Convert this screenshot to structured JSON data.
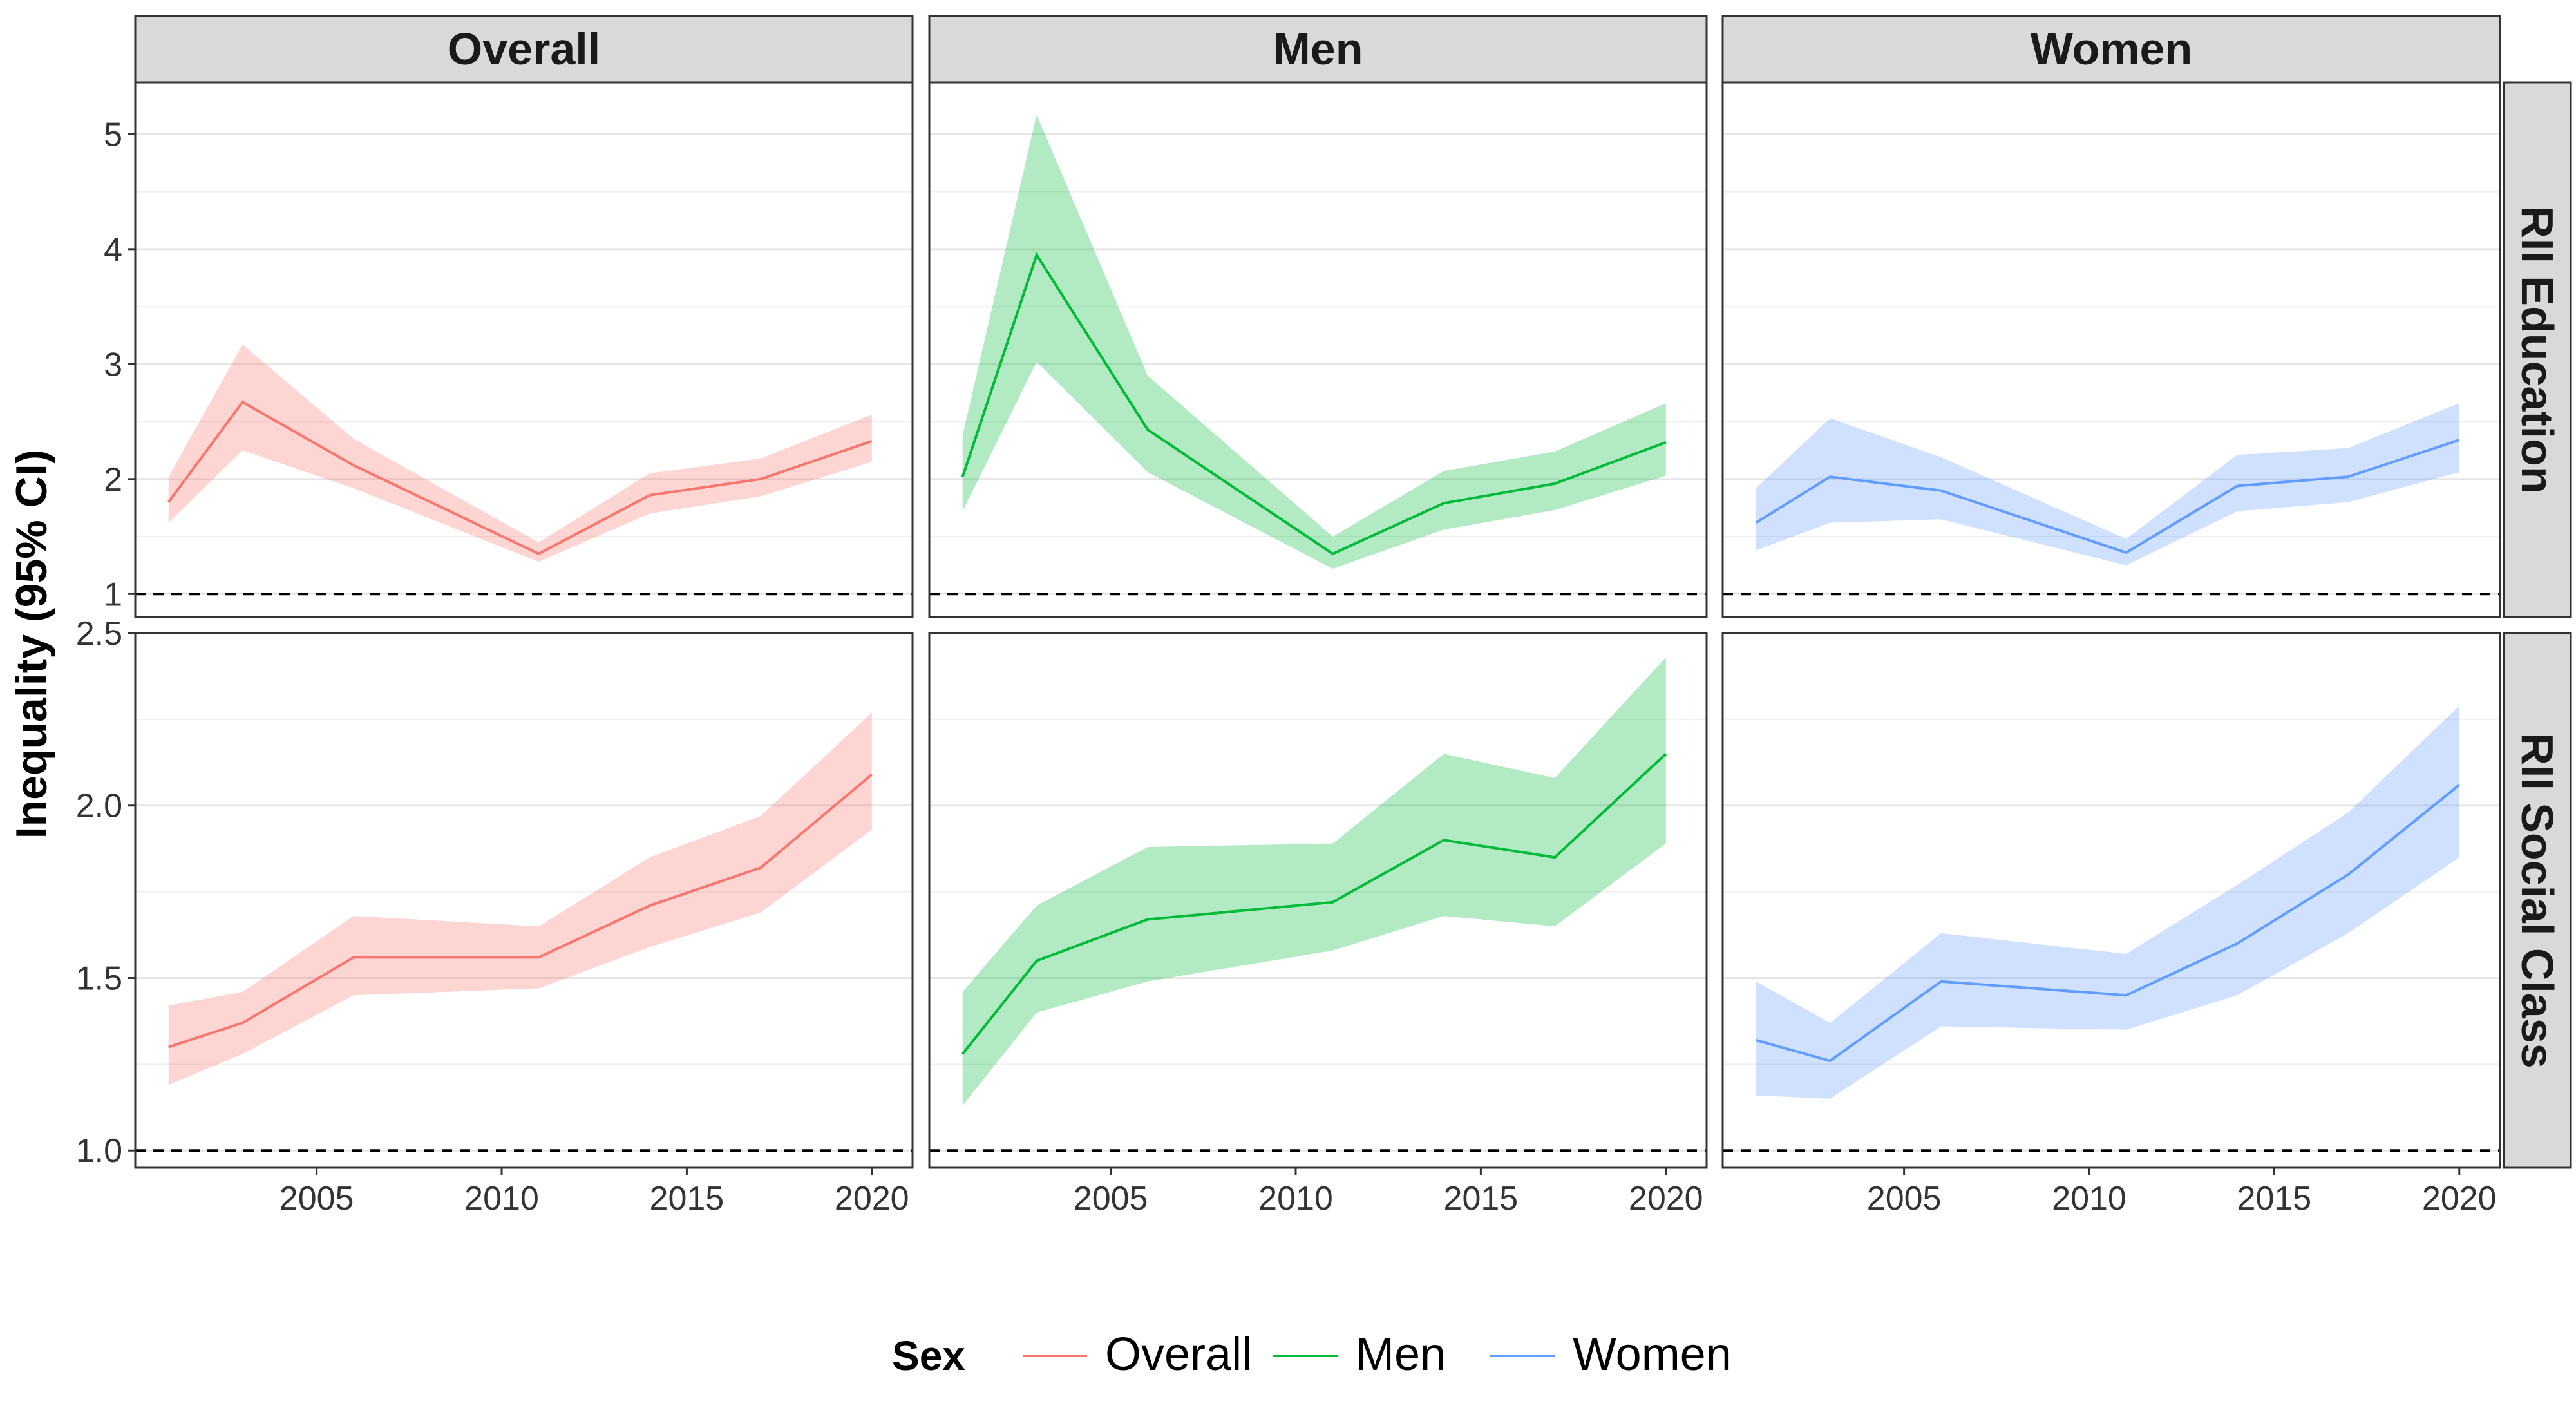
{
  "chart_data": {
    "type": "line",
    "ylabel": "Inequality (95% CI)",
    "columns": [
      "Overall",
      "Men",
      "Women"
    ],
    "rows": [
      "RII Education",
      "RII Social Class"
    ],
    "x_ticks": [
      2005,
      2010,
      2015,
      2020
    ],
    "xlim": [
      2000.1,
      2021.1
    ],
    "reference_line_y": 1,
    "reference_line_style": "dashed",
    "grid": true,
    "row_axes": [
      {
        "ylim": [
          0.8,
          5.45
        ],
        "ticks": [
          1,
          2,
          3,
          4,
          5
        ],
        "tick_labels": [
          "1",
          "2",
          "3",
          "4",
          "5"
        ]
      },
      {
        "ylim": [
          0.95,
          2.5
        ],
        "ticks": [
          1.0,
          1.5,
          2.0,
          2.5
        ],
        "tick_labels": [
          "1.0",
          "1.5",
          "2.0",
          "2.5"
        ]
      }
    ],
    "x": [
      2001,
      2003,
      2006,
      2011,
      2014,
      2017,
      2020
    ],
    "panels": [
      {
        "row": "RII Education",
        "column": "Overall",
        "series": "Overall",
        "values": [
          1.8,
          2.67,
          2.12,
          1.35,
          1.86,
          2.0,
          2.33
        ],
        "lower": [
          1.62,
          2.25,
          1.92,
          1.28,
          1.7,
          1.85,
          2.15
        ],
        "upper": [
          2.02,
          3.17,
          2.35,
          1.45,
          2.05,
          2.18,
          2.56
        ]
      },
      {
        "row": "RII Education",
        "column": "Men",
        "series": "Men",
        "values": [
          2.02,
          3.95,
          2.43,
          1.35,
          1.79,
          1.96,
          2.32
        ],
        "lower": [
          1.72,
          3.02,
          2.06,
          1.22,
          1.56,
          1.73,
          2.03
        ],
        "upper": [
          2.38,
          5.17,
          2.9,
          1.5,
          2.07,
          2.24,
          2.66
        ]
      },
      {
        "row": "RII Education",
        "column": "Women",
        "series": "Women",
        "values": [
          1.62,
          2.02,
          1.9,
          1.36,
          1.94,
          2.02,
          2.34
        ],
        "lower": [
          1.38,
          1.62,
          1.65,
          1.25,
          1.72,
          1.8,
          2.06
        ],
        "upper": [
          1.92,
          2.53,
          2.19,
          1.48,
          2.21,
          2.27,
          2.66
        ]
      },
      {
        "row": "RII Social Class",
        "column": "Overall",
        "series": "Overall",
        "values": [
          1.3,
          1.37,
          1.56,
          1.56,
          1.71,
          1.82,
          2.09
        ],
        "lower": [
          1.19,
          1.28,
          1.45,
          1.47,
          1.59,
          1.69,
          1.93
        ],
        "upper": [
          1.42,
          1.46,
          1.68,
          1.65,
          1.85,
          1.97,
          2.27
        ]
      },
      {
        "row": "RII Social Class",
        "column": "Men",
        "series": "Men",
        "values": [
          1.28,
          1.55,
          1.67,
          1.72,
          1.9,
          1.85,
          2.15
        ],
        "lower": [
          1.13,
          1.4,
          1.49,
          1.58,
          1.68,
          1.65,
          1.89
        ],
        "upper": [
          1.46,
          1.71,
          1.88,
          1.89,
          2.15,
          2.08,
          2.43
        ]
      },
      {
        "row": "RII Social Class",
        "column": "Women",
        "series": "Women",
        "values": [
          1.32,
          1.26,
          1.49,
          1.45,
          1.6,
          1.8,
          2.06
        ],
        "lower": [
          1.16,
          1.15,
          1.36,
          1.35,
          1.45,
          1.63,
          1.85
        ],
        "upper": [
          1.49,
          1.37,
          1.63,
          1.57,
          1.77,
          1.98,
          2.29
        ]
      }
    ],
    "legend": {
      "title": "Sex",
      "position": "bottom",
      "entries": [
        {
          "label": "Overall",
          "color": "#F8766D"
        },
        {
          "label": "Men",
          "color": "#00BA38"
        },
        {
          "label": "Women",
          "color": "#619CFF"
        }
      ]
    },
    "colors": {
      "Overall": "#F8766D",
      "Men": "#00BA38",
      "Women": "#619CFF"
    }
  }
}
